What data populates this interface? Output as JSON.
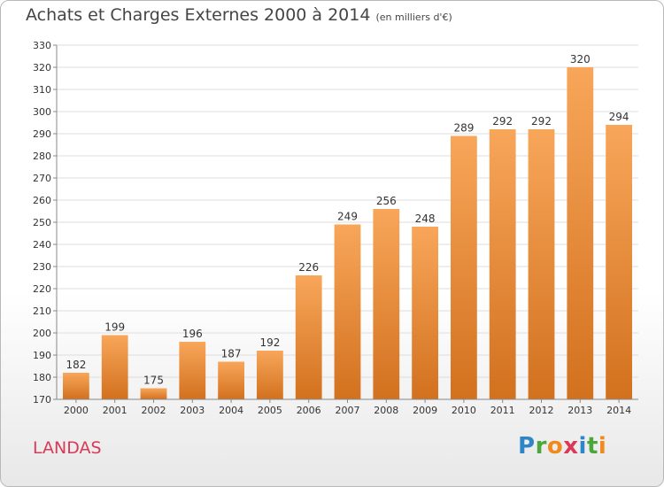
{
  "header": {
    "title": "Achats et Charges Externes 2000 à 2014",
    "subtitle": "(en milliers d'€)"
  },
  "footer": {
    "commune": "LANDAS",
    "logo_letters": [
      "P",
      "r",
      "o",
      "x",
      "i",
      "t",
      "i"
    ],
    "logo_colors": [
      "#2e86c8",
      "#4aa83a",
      "#f08a1c",
      "#d93a57",
      "#2e86c8",
      "#4aa83a",
      "#f08a1c"
    ]
  },
  "colors": {
    "bar_light": "#f8a65a",
    "bar_dark": "#d2711e",
    "grid": "#dddddd",
    "commune": "#d93a57"
  },
  "chart_data": {
    "type": "bar",
    "title": "Achats et Charges Externes 2000 à 2014",
    "subtitle": "(en milliers d'€)",
    "categories": [
      "2000",
      "2001",
      "2002",
      "2003",
      "2004",
      "2005",
      "2006",
      "2007",
      "2008",
      "2009",
      "2010",
      "2011",
      "2012",
      "2013",
      "2014"
    ],
    "values": [
      182,
      199,
      175,
      196,
      187,
      192,
      226,
      249,
      256,
      248,
      289,
      292,
      292,
      320,
      294
    ],
    "ylim": [
      170,
      330
    ],
    "yticks": [
      170,
      180,
      190,
      200,
      210,
      220,
      230,
      240,
      250,
      260,
      270,
      280,
      290,
      300,
      310,
      320,
      330
    ],
    "grid": true,
    "data_labels": true
  }
}
